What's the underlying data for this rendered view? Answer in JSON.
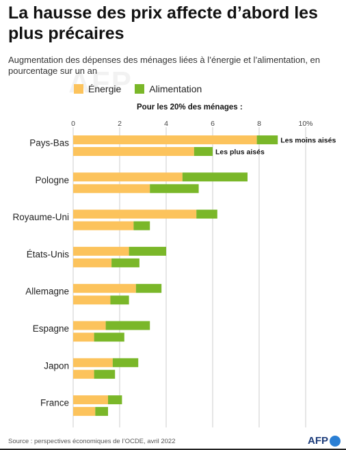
{
  "header": {
    "title": "La hausse des prix affecte d’abord les plus précaires",
    "subtitle": "Augmentation des dépenses des ménages liées à l’énergie et l’alimentation, en pourcentage sur un an",
    "watermark": "AFP"
  },
  "legend": {
    "energie_label": "Énergie",
    "alimentation_label": "Alimentation"
  },
  "colors": {
    "energie": "#fcc35c",
    "alimentation": "#7ab729",
    "grid": "#bfbfbf",
    "logo_dot": "#2a7fd4"
  },
  "footer": {
    "source": "Source : perspectives économiques de l’OCDE, avril 2022",
    "logo": "AFP"
  },
  "chart_data": {
    "type": "bar",
    "orientation": "horizontal",
    "stacked": true,
    "group_title": "Pour les 20% des ménages :",
    "row_labels": [
      "Les moins aisés",
      "Les plus aisés"
    ],
    "categories": [
      "Pays-Bas",
      "Pologne",
      "Royaume-Uni",
      "États-Unis",
      "Allemagne",
      "Espagne",
      "Japon",
      "France"
    ],
    "x_ticks": [
      "0",
      "2",
      "4",
      "6",
      "8",
      "10%"
    ],
    "xlim": [
      0,
      10
    ],
    "grid": true,
    "series": [
      {
        "name": "Énergie",
        "moins_aises": [
          7.9,
          4.7,
          5.3,
          2.4,
          2.7,
          1.4,
          1.7,
          1.5
        ],
        "plus_aises": [
          5.2,
          3.3,
          2.6,
          1.65,
          1.6,
          0.9,
          0.9,
          0.95
        ]
      },
      {
        "name": "Alimentation",
        "moins_aises": [
          0.9,
          2.8,
          0.9,
          1.6,
          1.1,
          1.9,
          1.1,
          0.6
        ],
        "plus_aises": [
          0.8,
          2.1,
          0.7,
          1.2,
          0.8,
          1.3,
          0.9,
          0.55
        ]
      }
    ]
  }
}
